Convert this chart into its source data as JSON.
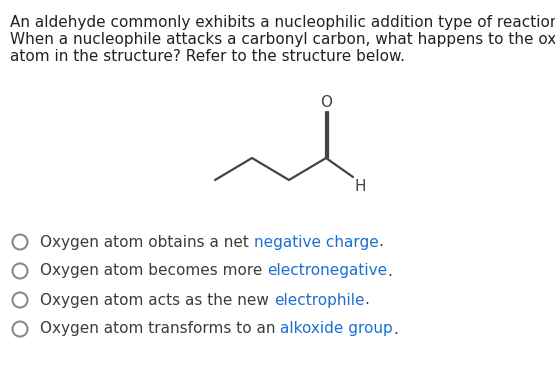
{
  "question_lines": [
    "An aldehyde commonly exhibits a nucleophilic addition type of reaction.",
    "When a nucleophile attacks a carbonyl carbon, what happens to the oxygen",
    "atom in the structure? Refer to the structure below."
  ],
  "options": [
    [
      [
        "Oxygen atom obtains a net ",
        "#3c3c3c"
      ],
      [
        "negative charge",
        "#1a6fd4"
      ],
      [
        ".",
        "#3c3c3c"
      ]
    ],
    [
      [
        "Oxygen atom becomes more ",
        "#3c3c3c"
      ],
      [
        "electronegative",
        "#1a6fd4"
      ],
      [
        ".",
        "#3c3c3c"
      ]
    ],
    [
      [
        "Oxygen atom acts as the new ",
        "#3c3c3c"
      ],
      [
        "electrophile",
        "#1a6fd4"
      ],
      [
        ".",
        "#3c3c3c"
      ]
    ],
    [
      [
        "Oxygen atom transforms to an ",
        "#3c3c3c"
      ],
      [
        "alkoxide group",
        "#1a6fd4"
      ],
      [
        ".",
        "#3c3c3c"
      ]
    ]
  ],
  "bg_color": "#ffffff",
  "q_fontsize": 11.0,
  "opt_fontsize": 11.0,
  "circle_color": "#888888",
  "struct_color": "#444444",
  "struct_lw": 1.6
}
